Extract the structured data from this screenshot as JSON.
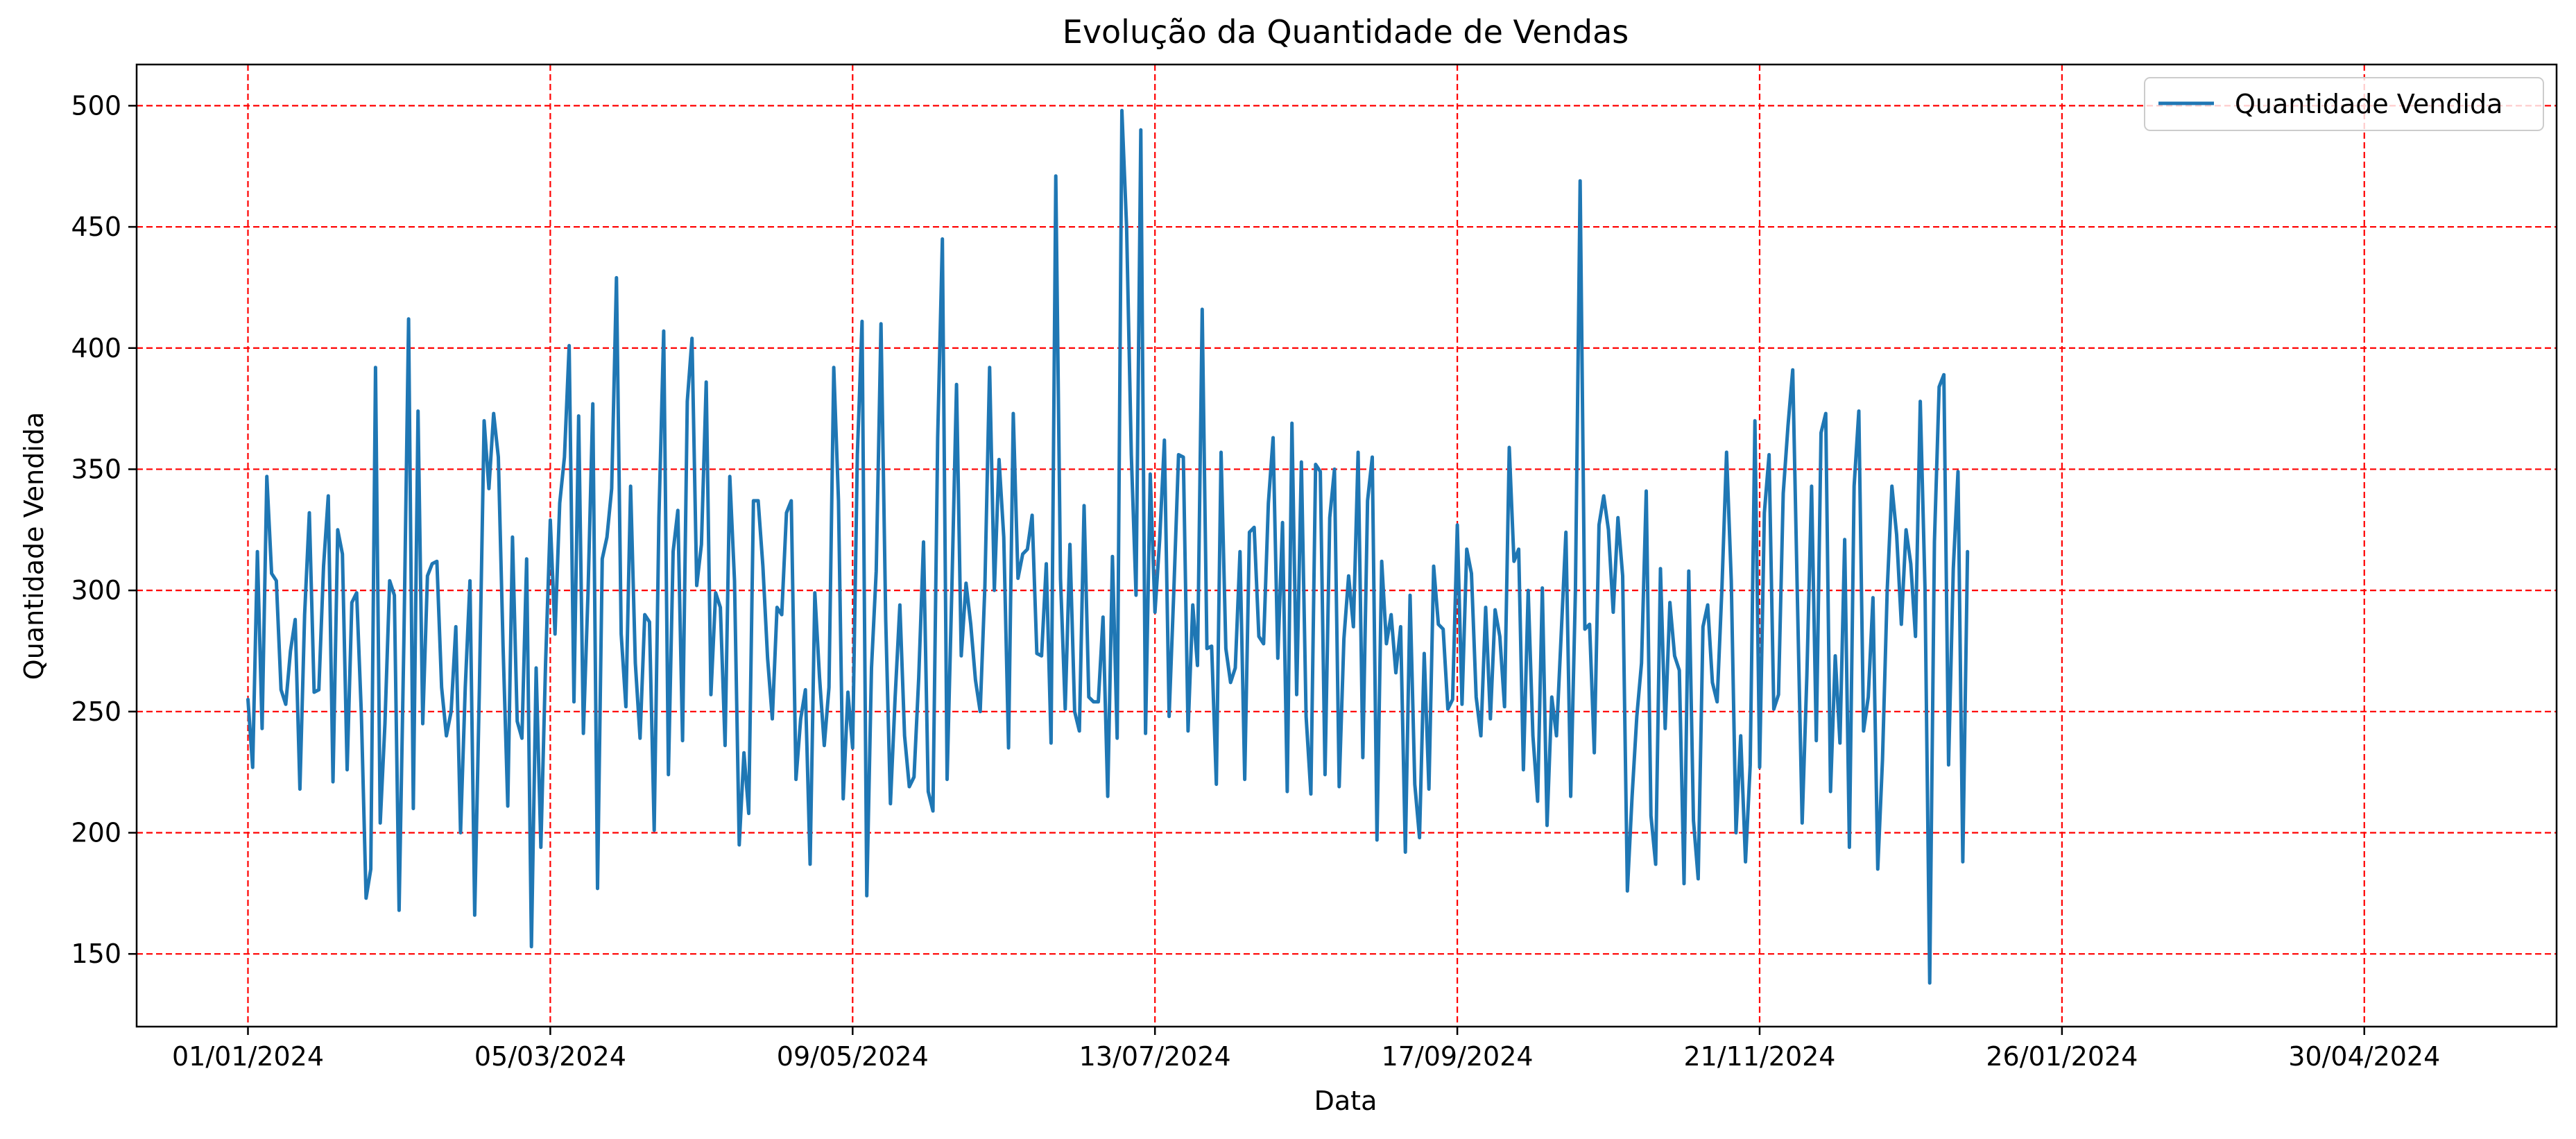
{
  "chart_data": {
    "type": "line",
    "title": "Evolução da Quantidade de Vendas",
    "xlabel": "Data",
    "ylabel": "Quantidade Vendida",
    "x_ticks": [
      "01/01/2024",
      "05/03/2024",
      "09/05/2024",
      "13/07/2024",
      "17/09/2024",
      "21/11/2024",
      "26/01/2024",
      "30/04/2024"
    ],
    "y_ticks": [
      150,
      200,
      250,
      300,
      350,
      400,
      450,
      500
    ],
    "ylim": [
      120,
      517
    ],
    "grid": true,
    "grid_style": "dashed",
    "grid_color": "#ff0000",
    "legend_position": "upper-right",
    "series": [
      {
        "name": "Quantidade Vendida",
        "color": "#1f77b4",
        "x_dates_start": "01/01/2024",
        "values": [
          255,
          227,
          316,
          243,
          347,
          307,
          304,
          259,
          253,
          275,
          288,
          218,
          290,
          332,
          258,
          259,
          310,
          339,
          221,
          325,
          315,
          226,
          295,
          299,
          249,
          173,
          185,
          392,
          204,
          245,
          304,
          298,
          168,
          279,
          412,
          210,
          374,
          245,
          306,
          311,
          312,
          260,
          240,
          250,
          285,
          200,
          260,
          304,
          166,
          260,
          370,
          342,
          373,
          355,
          277,
          211,
          322,
          246,
          239,
          313,
          153,
          268,
          194,
          270,
          329,
          282,
          336,
          355,
          401,
          254,
          372,
          241,
          300,
          377,
          177,
          313,
          322,
          342,
          429,
          282,
          252,
          343,
          270,
          239,
          290,
          287,
          201,
          330,
          407,
          224,
          316,
          333,
          238,
          378,
          404,
          302,
          319,
          386,
          257,
          299,
          293,
          236,
          347,
          304,
          195,
          233,
          208,
          337,
          337,
          310,
          272,
          247,
          293,
          290,
          332,
          337,
          222,
          247,
          259,
          187,
          299,
          264,
          236,
          260,
          392,
          337,
          214,
          258,
          235,
          356,
          411,
          174,
          268,
          308,
          410,
          288,
          212,
          256,
          294,
          240,
          219,
          223,
          264,
          320,
          217,
          209,
          363,
          445,
          222,
          300,
          385,
          273,
          303,
          286,
          263,
          250,
          302,
          392,
          300,
          354,
          322,
          235,
          373,
          305,
          315,
          317,
          331,
          274,
          273,
          311,
          237,
          471,
          305,
          251,
          319,
          250,
          242,
          335,
          256,
          254,
          254,
          289,
          215,
          314,
          239,
          498,
          450,
          356,
          298,
          490,
          241,
          348,
          291,
          321,
          362,
          248,
          300,
          356,
          355,
          242,
          294,
          269,
          416,
          276,
          277,
          220,
          357,
          276,
          262,
          268,
          316,
          222,
          324,
          326,
          281,
          278,
          336,
          363,
          272,
          328,
          217,
          369,
          257,
          353,
          248,
          216,
          352,
          349,
          224,
          330,
          350,
          219,
          280,
          306,
          285,
          357,
          231,
          337,
          355,
          197,
          312,
          278,
          290,
          266,
          285,
          192,
          298,
          220,
          198,
          274,
          218,
          310,
          286,
          284,
          251,
          255,
          327,
          253,
          317,
          307,
          256,
          240,
          293,
          247,
          292,
          281,
          252,
          359,
          312,
          317,
          226,
          300,
          240,
          213,
          301,
          203,
          256,
          240,
          282,
          324,
          215,
          300,
          469,
          284,
          286,
          233,
          327,
          339,
          325,
          291,
          330,
          306,
          176,
          215,
          248,
          270,
          341,
          207,
          187,
          309,
          243,
          295,
          273,
          267,
          179,
          308,
          205,
          181,
          285,
          294,
          262,
          254,
          300,
          357,
          304,
          200,
          240,
          188,
          228,
          370,
          227,
          332,
          356,
          251,
          257,
          340,
          368,
          391,
          296,
          204,
          265,
          343,
          238,
          365,
          373,
          217,
          273,
          237,
          321,
          194,
          343,
          374,
          242,
          256,
          297,
          185,
          230,
          300,
          343,
          323,
          286,
          325,
          311,
          281,
          378,
          301,
          138,
          320,
          384,
          389,
          228,
          309,
          349,
          188,
          316
        ]
      }
    ]
  }
}
